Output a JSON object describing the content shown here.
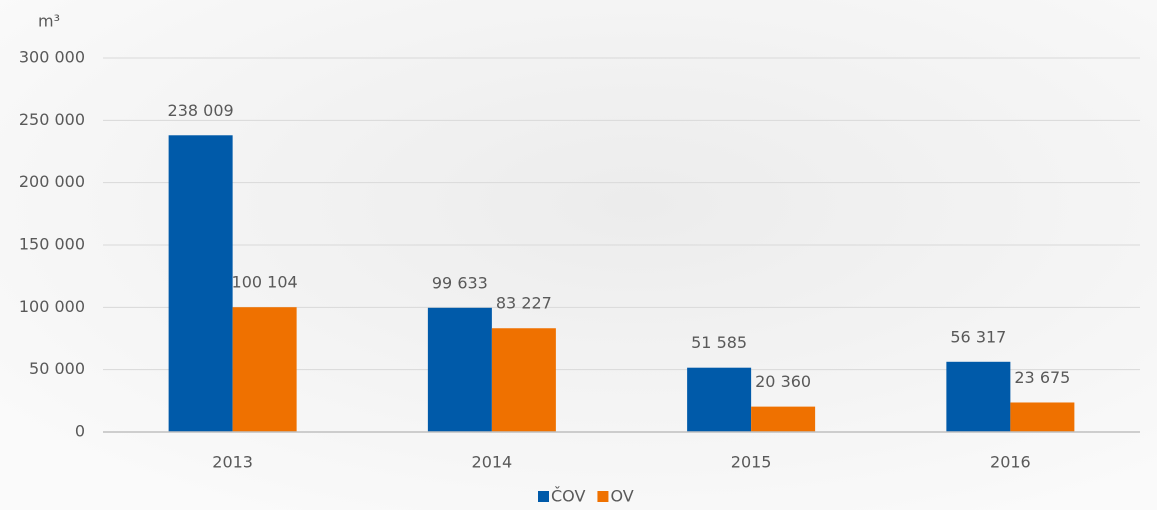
{
  "chart_data": {
    "type": "bar",
    "y_label": "m³",
    "categories": [
      "2013",
      "2014",
      "2015",
      "2016"
    ],
    "series": [
      {
        "name": "ČOV",
        "color": "#005aa9",
        "values": [
          238009,
          99633,
          51585,
          56317
        ],
        "value_labels": [
          "238 009",
          "99 633",
          "51 585",
          "56 317"
        ]
      },
      {
        "name": "OV",
        "color": "#ef7100",
        "values": [
          100104,
          83227,
          20360,
          23675
        ],
        "value_labels": [
          "100 104",
          "83 227",
          "20 360",
          "23 675"
        ]
      }
    ],
    "ylim": [
      0,
      300000
    ],
    "yticks": [
      0,
      {
        "value": 50000,
        "label": "50 000"
      },
      {
        "value": 100000,
        "label": "100 000"
      },
      {
        "value": 150000,
        "label": "150 000"
      },
      {
        "value": 200000,
        "label": "200 000"
      },
      {
        "value": 250000,
        "label": "250 000"
      },
      {
        "value": 300000,
        "label": "300 000"
      }
    ],
    "grid": true,
    "legend": "bottom"
  }
}
